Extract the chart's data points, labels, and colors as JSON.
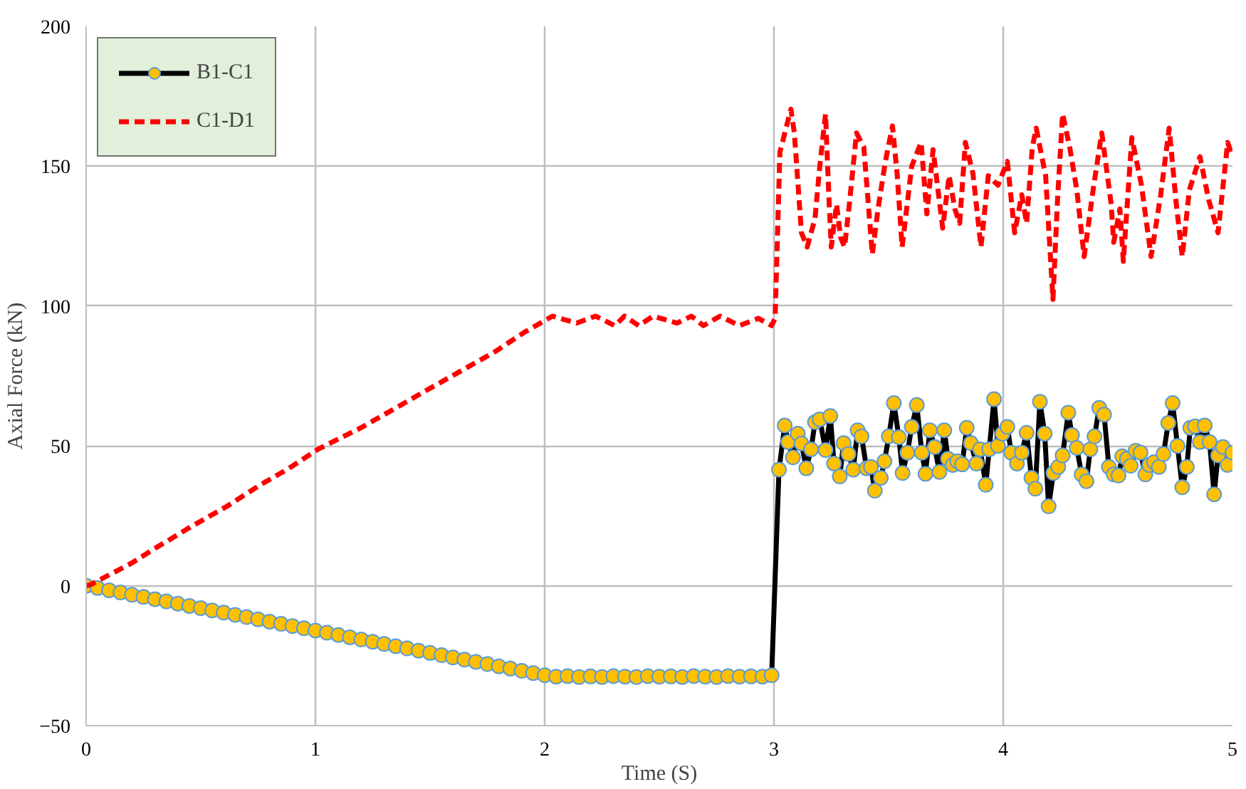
{
  "chart_data": {
    "type": "line",
    "xlabel": "Time (S)",
    "ylabel": "Axial Force (kN)",
    "xlim": [
      0,
      5
    ],
    "ylim": [
      -50,
      200
    ],
    "xticks": [
      0,
      1,
      2,
      3,
      4,
      5
    ],
    "yticks": [
      -50,
      0,
      50,
      100,
      150,
      200
    ],
    "grid": true,
    "legend": "top left",
    "series": [
      {
        "name": "B1-C1",
        "color": "#000000",
        "marker": "circle",
        "line_style": "solid",
        "x": [
          0,
          0.05,
          0.1,
          0.15,
          0.2,
          0.25,
          0.3,
          0.35,
          0.4,
          0.45,
          0.5,
          0.55,
          0.6,
          0.65,
          0.7,
          0.75,
          0.8,
          0.85,
          0.9,
          0.95,
          1,
          1.05,
          1.1,
          1.15,
          1.2,
          1.25,
          1.3,
          1.35,
          1.4,
          1.45,
          1.5,
          1.55,
          1.6,
          1.65,
          1.7,
          1.75,
          1.8,
          1.85,
          1.9,
          1.95,
          2,
          2.05,
          2.1,
          2.15,
          2.2,
          2.25,
          2.3,
          2.35,
          2.4,
          2.45,
          2.5,
          2.55,
          2.6,
          2.65,
          2.7,
          2.75,
          2.8,
          2.85,
          2.9,
          2.95,
          2.99,
          3.022,
          3.047,
          3.062,
          3.083,
          3.104,
          3.12,
          3.141,
          3.162,
          3.179,
          3.2,
          3.225,
          3.246,
          3.262,
          3.287,
          3.304,
          3.325,
          3.346,
          3.365,
          3.382,
          3.404,
          3.423,
          3.44,
          3.466,
          3.482,
          3.501,
          3.523,
          3.545,
          3.561,
          3.582,
          3.601,
          3.623,
          3.645,
          3.661,
          3.68,
          3.701,
          3.722,
          3.743,
          3.759,
          3.78,
          3.8,
          3.821,
          3.841,
          3.859,
          3.883,
          3.899,
          3.924,
          3.939,
          3.96,
          3.977,
          3.997,
          4.018,
          4.035,
          4.06,
          4.081,
          4.102,
          4.123,
          4.14,
          4.16,
          4.181,
          4.198,
          4.219,
          4.24,
          4.259,
          4.284,
          4.3,
          4.321,
          4.342,
          4.363,
          4.38,
          4.398,
          4.419,
          4.44,
          4.461,
          4.482,
          4.503,
          4.519,
          4.54,
          4.556,
          4.578,
          4.599,
          4.62,
          4.637,
          4.658,
          4.679,
          4.699,
          4.72,
          4.739,
          4.76,
          4.781,
          4.801,
          4.816,
          4.837,
          4.858,
          4.879,
          4.9,
          4.92,
          4.937,
          4.958,
          4.979,
          5
        ],
        "values": [
          0,
          -0.8,
          -1.6,
          -2.4,
          -3.2,
          -4,
          -4.8,
          -5.6,
          -6.4,
          -7.2,
          -8,
          -8.8,
          -9.6,
          -10.4,
          -11.2,
          -12,
          -12.8,
          -13.6,
          -14.4,
          -15.2,
          -16,
          -16.8,
          -17.6,
          -18.4,
          -19.2,
          -20,
          -20.8,
          -21.6,
          -22.4,
          -23.2,
          -24,
          -24.8,
          -25.6,
          -26.4,
          -27.2,
          -28,
          -28.8,
          -29.6,
          -30.4,
          -31.2,
          -32,
          -32.5,
          -32.3,
          -32.6,
          -32.4,
          -32.6,
          -32.3,
          -32.5,
          -32.6,
          -32.3,
          -32.5,
          -32.4,
          -32.6,
          -32.3,
          -32.5,
          -32.6,
          -32.3,
          -32.5,
          -32.4,
          -32.5,
          -32,
          41.5,
          57.3,
          51.4,
          45.9,
          54.4,
          50.9,
          42,
          48.8,
          58.5,
          59.5,
          48.5,
          60.7,
          43.7,
          39.1,
          51,
          47.1,
          41.5,
          55.6,
          53.4,
          42,
          42.5,
          34,
          38.6,
          44.5,
          53.4,
          65.3,
          53.1,
          40.3,
          47.6,
          56.8,
          64.6,
          47.6,
          40,
          55.6,
          49.6,
          40.7,
          55.6,
          45.4,
          43.2,
          44.5,
          43.4,
          56.5,
          51,
          43.7,
          48.8,
          36.1,
          48.8,
          66.7,
          50,
          54.4,
          56.8,
          47.6,
          43.7,
          47.6,
          54.7,
          38.6,
          34.7,
          65.8,
          54.4,
          28.4,
          40.3,
          42.5,
          46.6,
          61.9,
          53.9,
          49.3,
          39.8,
          37.4,
          48.8,
          53.4,
          63.6,
          61.2,
          42.5,
          39.8,
          39.4,
          46.3,
          45.4,
          42.9,
          48.3,
          47.6,
          39.8,
          43.2,
          44.2,
          42.5,
          47.1,
          58.2,
          65.3,
          50,
          35.2,
          42.5,
          56.5,
          57,
          51.4,
          57.3,
          51.4,
          32.7,
          46.6,
          49.6,
          43.2,
          47.6
        ]
      },
      {
        "name": "C1-D1",
        "color": "#ff0000",
        "marker": "none",
        "line_style": "dashed",
        "x": [
          0,
          0.019,
          0.196,
          0.311,
          0.457,
          0.614,
          0.76,
          0.885,
          1.011,
          1.199,
          1.345,
          1.47,
          1.637,
          1.784,
          1.909,
          2.034,
          2.139,
          2.222,
          2.306,
          2.348,
          2.41,
          2.473,
          2.577,
          2.64,
          2.692,
          2.765,
          2.849,
          2.932,
          2.99,
          3.005,
          3.026,
          3.037,
          3.074,
          3.089,
          3.12,
          3.145,
          3.179,
          3.2,
          3.225,
          3.241,
          3.25,
          3.273,
          3.291,
          3.308,
          3.329,
          3.36,
          3.392,
          3.429,
          3.454,
          3.486,
          3.517,
          3.538,
          3.559,
          3.601,
          3.642,
          3.667,
          3.694,
          3.736,
          3.764,
          3.789,
          3.81,
          3.835,
          3.868,
          3.903,
          3.935,
          3.977,
          4.018,
          4.05,
          4.081,
          4.102,
          4.127,
          4.144,
          4.185,
          4.217,
          4.237,
          4.259,
          4.29,
          4.321,
          4.353,
          4.395,
          4.43,
          4.471,
          4.482,
          4.509,
          4.524,
          4.561,
          4.603,
          4.645,
          4.687,
          4.724,
          4.755,
          4.781,
          4.812,
          4.858,
          4.896,
          4.937,
          4.979,
          5
        ],
        "values": [
          0,
          0.4,
          8,
          13.9,
          21.1,
          28.4,
          36.1,
          42,
          48.8,
          56.5,
          63.3,
          69.2,
          76.9,
          83.7,
          90.5,
          96.4,
          93.9,
          96.4,
          93,
          96.4,
          93,
          96.4,
          93.9,
          96.4,
          93,
          96.4,
          93,
          95.6,
          93,
          95.6,
          155.1,
          158.5,
          170.4,
          161.9,
          126.2,
          121.1,
          131.3,
          150,
          168.7,
          136.4,
          121.1,
          136.4,
          124.5,
          121.1,
          136.4,
          161.9,
          156.8,
          118.5,
          134.7,
          151.7,
          164.4,
          146.6,
          121.1,
          150,
          158.5,
          133,
          155.9,
          127.9,
          146.6,
          134.7,
          129.6,
          158.5,
          147.4,
          121.1,
          146.6,
          143.2,
          151.7,
          126.2,
          139.8,
          129.6,
          156.8,
          163.6,
          146.6,
          102.4,
          138.1,
          168.7,
          156.8,
          141.5,
          117.7,
          143.2,
          161.9,
          136.4,
          122.8,
          134.7,
          116,
          160.2,
          143.2,
          117.7,
          139.8,
          163.6,
          136.4,
          117.7,
          141.5,
          153.4,
          138.1,
          126.2,
          158.5,
          153.4
        ]
      }
    ]
  }
}
